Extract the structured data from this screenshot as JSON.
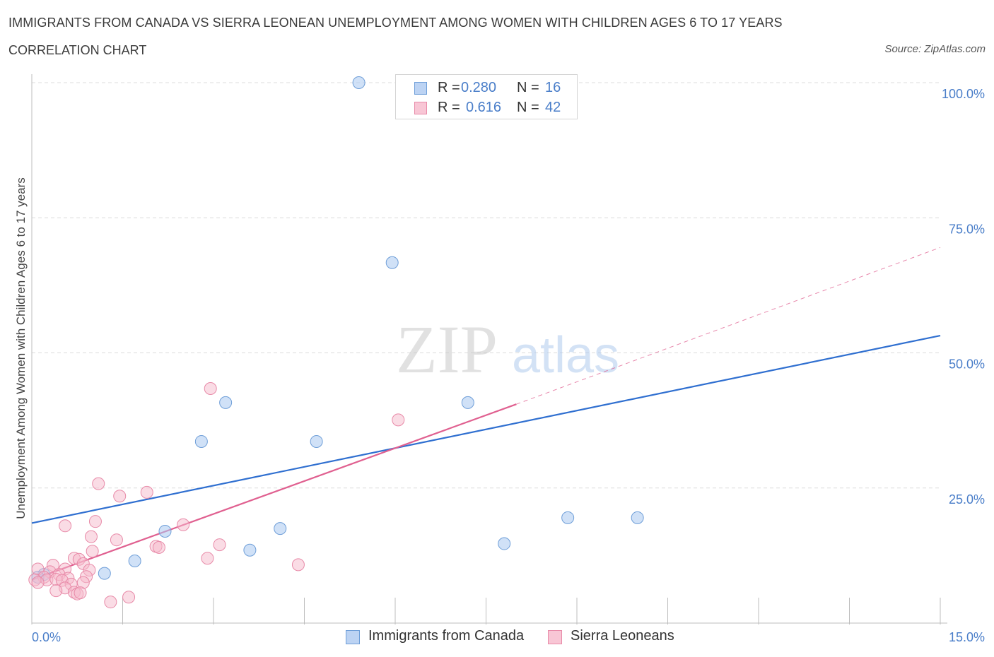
{
  "header": {
    "title": "IMMIGRANTS FROM CANADA VS SIERRA LEONEAN UNEMPLOYMENT AMONG WOMEN WITH CHILDREN AGES 6 TO 17 YEARS",
    "subtitle": "CORRELATION CHART",
    "source": "Source: ZipAtlas.com"
  },
  "watermark": {
    "zip": "ZIP",
    "atlas": "atlas"
  },
  "legend": {
    "canada": {
      "r_label": "R =",
      "r_value": "0.280",
      "n_label": "N =",
      "n_value": "16"
    },
    "sierra": {
      "r_label": "R =",
      "r_value": "0.616",
      "n_label": "N =",
      "n_value": "42"
    }
  },
  "colors": {
    "canada_fill": "#aac8f0",
    "canada_stroke": "#6e9ed8",
    "canada_line": "#2f6fd0",
    "sierra_fill": "#f6b9cc",
    "sierra_stroke": "#e88aa8",
    "sierra_line": "#e06090",
    "axis_label_blue": "#4a7ec9",
    "grid": "#dcdcdc"
  },
  "chart_data": {
    "type": "scatter",
    "title": "IMMIGRANTS FROM CANADA VS SIERRA LEONEAN UNEMPLOYMENT AMONG WOMEN WITH CHILDREN AGES 6 TO 17 YEARS",
    "xlabel": "",
    "ylabel": "Unemployment Among Women with Children Ages 6 to 17 years",
    "xlim": [
      0,
      15
    ],
    "ylim": [
      0,
      100
    ],
    "x_tick_labels": [
      "0.0%",
      "15.0%"
    ],
    "y_tick_labels": [
      "25.0%",
      "50.0%",
      "75.0%",
      "100.0%"
    ],
    "y_ticks": [
      25,
      50,
      75,
      100
    ],
    "grid": true,
    "legend_position": "bottom",
    "series": [
      {
        "name": "Immigrants from Canada",
        "points": [
          {
            "x": 5.4,
            "y": 100.0
          },
          {
            "x": 5.95,
            "y": 66.7
          },
          {
            "x": 3.2,
            "y": 40.8
          },
          {
            "x": 7.2,
            "y": 40.8
          },
          {
            "x": 2.8,
            "y": 33.6
          },
          {
            "x": 4.7,
            "y": 33.6
          },
          {
            "x": 2.2,
            "y": 17.0
          },
          {
            "x": 4.1,
            "y": 17.5
          },
          {
            "x": 3.6,
            "y": 13.5
          },
          {
            "x": 1.7,
            "y": 11.5
          },
          {
            "x": 1.2,
            "y": 9.2
          },
          {
            "x": 0.2,
            "y": 9.0
          },
          {
            "x": 0.1,
            "y": 8.5
          },
          {
            "x": 8.85,
            "y": 19.5
          },
          {
            "x": 10.0,
            "y": 19.5
          },
          {
            "x": 7.8,
            "y": 14.7
          }
        ],
        "trend": {
          "x0": 0,
          "y0": 18.5,
          "x1": 15,
          "y1": 53.2,
          "dashed": false
        }
      },
      {
        "name": "Sierra Leoneans",
        "points": [
          {
            "x": 2.95,
            "y": 43.4
          },
          {
            "x": 6.05,
            "y": 37.6
          },
          {
            "x": 1.1,
            "y": 25.8
          },
          {
            "x": 1.45,
            "y": 23.5
          },
          {
            "x": 1.9,
            "y": 24.2
          },
          {
            "x": 0.55,
            "y": 18.0
          },
          {
            "x": 1.05,
            "y": 18.8
          },
          {
            "x": 2.5,
            "y": 18.2
          },
          {
            "x": 0.98,
            "y": 16.0
          },
          {
            "x": 1.4,
            "y": 15.4
          },
          {
            "x": 3.1,
            "y": 14.5
          },
          {
            "x": 2.05,
            "y": 14.2
          },
          {
            "x": 2.1,
            "y": 14.0
          },
          {
            "x": 1.0,
            "y": 13.3
          },
          {
            "x": 0.7,
            "y": 12.0
          },
          {
            "x": 0.78,
            "y": 11.8
          },
          {
            "x": 2.9,
            "y": 12.0
          },
          {
            "x": 4.4,
            "y": 10.8
          },
          {
            "x": 0.85,
            "y": 11.0
          },
          {
            "x": 0.35,
            "y": 10.7
          },
          {
            "x": 0.55,
            "y": 10.0
          },
          {
            "x": 0.95,
            "y": 9.8
          },
          {
            "x": 0.1,
            "y": 10.0
          },
          {
            "x": 0.3,
            "y": 9.5
          },
          {
            "x": 0.45,
            "y": 9.0
          },
          {
            "x": 0.9,
            "y": 8.6
          },
          {
            "x": 0.6,
            "y": 8.3
          },
          {
            "x": 0.2,
            "y": 8.5
          },
          {
            "x": 0.25,
            "y": 8.0
          },
          {
            "x": 0.4,
            "y": 8.1
          },
          {
            "x": 0.5,
            "y": 7.9
          },
          {
            "x": 0.05,
            "y": 8.0
          },
          {
            "x": 0.1,
            "y": 7.5
          },
          {
            "x": 0.65,
            "y": 7.2
          },
          {
            "x": 0.85,
            "y": 7.5
          },
          {
            "x": 0.55,
            "y": 6.5
          },
          {
            "x": 0.4,
            "y": 6.0
          },
          {
            "x": 0.7,
            "y": 5.7
          },
          {
            "x": 0.75,
            "y": 5.4
          },
          {
            "x": 0.8,
            "y": 5.6
          },
          {
            "x": 1.6,
            "y": 4.8
          },
          {
            "x": 1.3,
            "y": 3.9
          }
        ],
        "trend": {
          "x0": 0,
          "y0": 8.0,
          "x1": 8.0,
          "y1": 40.5,
          "dashed_to_x": 15,
          "dashed_to_y": 69.5
        }
      }
    ]
  },
  "bottom_legend": {
    "canada_label": "Immigrants from Canada",
    "sierra_label": "Sierra Leoneans"
  }
}
